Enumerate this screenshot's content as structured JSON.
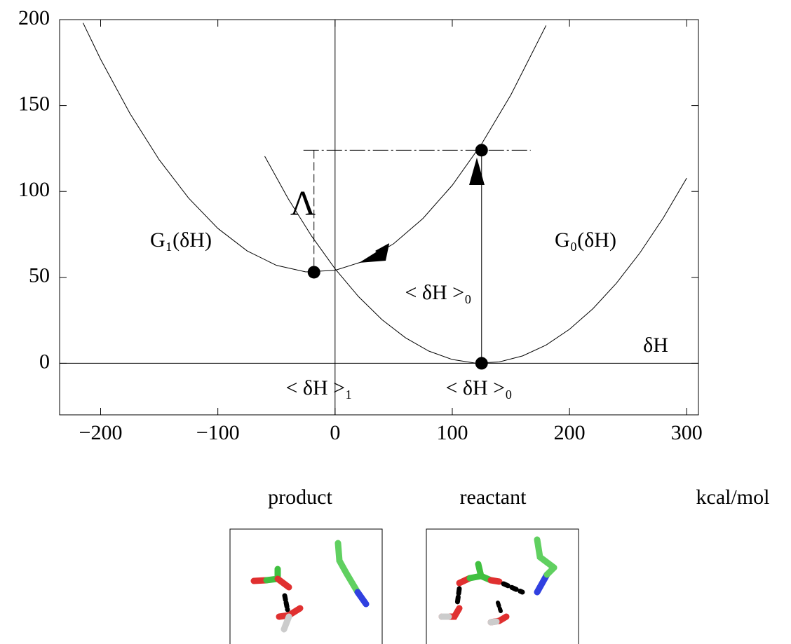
{
  "chart_data": {
    "type": "line",
    "xlim": [
      -235,
      310
    ],
    "ylim": [
      -30,
      200
    ],
    "xticks": [
      {
        "value": -200,
        "label": "−200"
      },
      {
        "value": -100,
        "label": "−100"
      },
      0,
      100,
      200,
      300
    ],
    "yticks": [
      0,
      50,
      100,
      150,
      200
    ],
    "series": [
      {
        "name": "G₀(δH)",
        "color": "#000000",
        "x": [
          -60,
          -40,
          -20,
          0,
          20,
          40,
          60,
          80,
          100,
          120,
          140,
          160,
          180,
          200,
          220,
          240,
          260,
          280,
          300
        ],
        "values": [
          120.5,
          95.8,
          74.0,
          55.0,
          38.8,
          25.4,
          14.9,
          7.1,
          2.2,
          0.1,
          0.8,
          4.3,
          10.6,
          19.8,
          31.8,
          46.6,
          64.2,
          84.6,
          107.8
        ]
      },
      {
        "name": "G₁(δH)",
        "color": "#000000",
        "x": [
          -215,
          -200,
          -175,
          -150,
          -125,
          -100,
          -75,
          -50,
          -25,
          0,
          25,
          50,
          75,
          100,
          125,
          150,
          180
        ],
        "values": [
          198.1,
          176.9,
          145.4,
          118.4,
          96.2,
          78.5,
          65.4,
          57.0,
          53.2,
          54.1,
          59.5,
          69.6,
          84.3,
          103.6,
          127.6,
          156.2,
          196.6
        ]
      }
    ],
    "points": {
      "color": "#000000",
      "x": [
        125,
        -18,
        125
      ],
      "values": [
        124,
        53,
        0
      ]
    },
    "annotations": {
      "lambda": "Λ",
      "mean0_gap": "< δH >₀",
      "axis_name": "δH",
      "mean1": "< δH >₁",
      "mean0": "< δH >₀"
    }
  },
  "units": "kcal/mol",
  "panels": [
    "product",
    "reactant"
  ]
}
